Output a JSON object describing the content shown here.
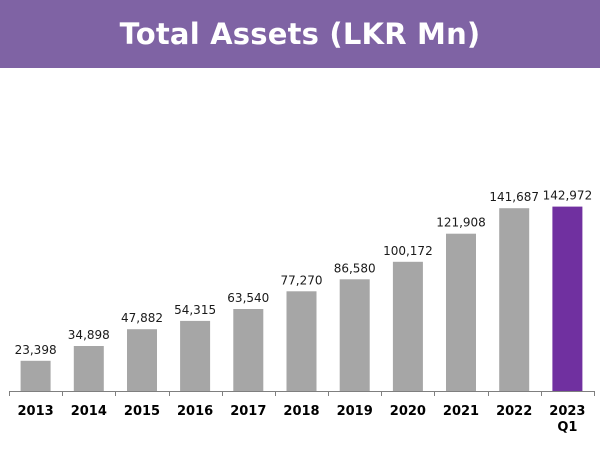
{
  "title": "Total Assets (LKR Mn)",
  "colors": {
    "title_bar": "#7f63a4",
    "bar_default": "#a6a6a6",
    "bar_highlight": "#7030a0",
    "axis": "#7f7f7f"
  },
  "chart_data": {
    "type": "bar",
    "title": "Total Assets (LKR Mn)",
    "categories": [
      "2013",
      "2014",
      "2015",
      "2016",
      "2017",
      "2018",
      "2019",
      "2020",
      "2021",
      "2022",
      "2023 Q1"
    ],
    "category_lines": [
      [
        "2013"
      ],
      [
        "2014"
      ],
      [
        "2015"
      ],
      [
        "2016"
      ],
      [
        "2017"
      ],
      [
        "2018"
      ],
      [
        "2019"
      ],
      [
        "2020"
      ],
      [
        "2021"
      ],
      [
        "2022"
      ],
      [
        "2023",
        "Q1"
      ]
    ],
    "values": [
      23398,
      34898,
      47882,
      54315,
      63540,
      77270,
      86580,
      100172,
      121908,
      141687,
      142972
    ],
    "value_labels": [
      "23,398",
      "34,898",
      "47,882",
      "54,315",
      "63,540",
      "77,270",
      "86,580",
      "100,172",
      "121,908",
      "141,687",
      "142,972"
    ],
    "highlight_index": 10,
    "ylim": [
      0,
      160000
    ],
    "xlabel": "",
    "ylabel": "",
    "grid": false,
    "legend": "none"
  }
}
